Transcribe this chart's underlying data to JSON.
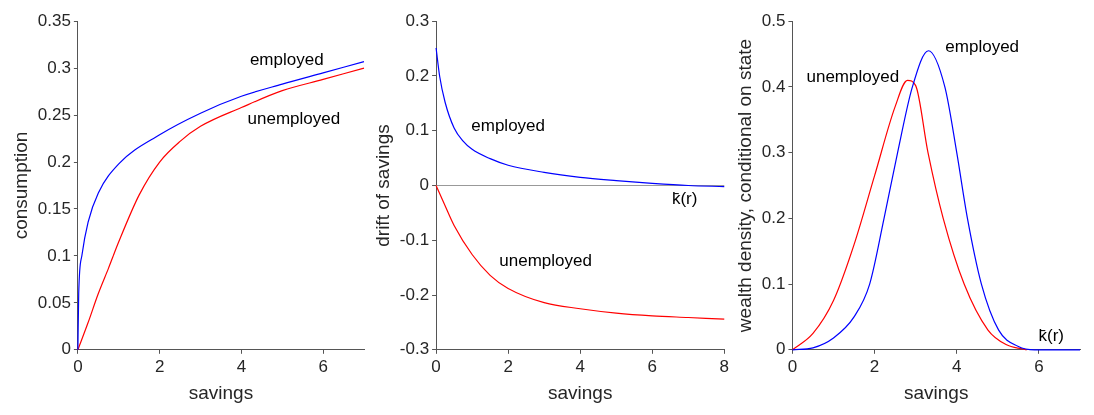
{
  "chart_data": [
    {
      "type": "line",
      "xlabel": "savings",
      "ylabel": "consumption",
      "xlim": [
        0,
        7
      ],
      "xticks": [
        0,
        2,
        4,
        6
      ],
      "ylim": [
        0,
        0.35
      ],
      "yticks": [
        0,
        0.05,
        0.1,
        0.15,
        0.2,
        0.25,
        0.3,
        0.35
      ],
      "grid": false,
      "legend": false,
      "series": [
        {
          "name": "employed",
          "color": "#0000ff",
          "x": [
            0,
            0.02,
            0.1,
            0.25,
            0.5,
            1,
            2,
            3,
            4,
            5,
            6,
            7
          ],
          "values": [
            0,
            0.06,
            0.101,
            0.136,
            0.167,
            0.198,
            0.229,
            0.252,
            0.27,
            0.283,
            0.295,
            0.307
          ]
        },
        {
          "name": "unemployed",
          "color": "#ff0000",
          "x": [
            0,
            0.25,
            0.5,
            0.75,
            1,
            1.5,
            2,
            2.5,
            3,
            4,
            5,
            6,
            7
          ],
          "values": [
            0,
            0.029,
            0.06,
            0.087,
            0.115,
            0.165,
            0.2,
            0.222,
            0.238,
            0.258,
            0.276,
            0.288,
            0.3
          ]
        }
      ]
    },
    {
      "type": "line",
      "xlabel": "savings",
      "ylabel": "drift of savings",
      "xlim": [
        0,
        8
      ],
      "xticks": [
        0,
        2,
        4,
        6,
        8
      ],
      "ylim": [
        -0.3,
        0.3
      ],
      "yticks": [
        -0.3,
        -0.2,
        -0.1,
        0,
        0.1,
        0.2,
        0.3
      ],
      "grid": false,
      "legend": false,
      "ref_lines": [
        {
          "axis": "y",
          "value": 0,
          "color": "#999999"
        }
      ],
      "annotations": [
        {
          "text": "k̄(r)",
          "x": 6.9,
          "y": 0
        }
      ],
      "series": [
        {
          "name": "employed",
          "color": "#0000ff",
          "x": [
            0,
            0.1,
            0.25,
            0.5,
            0.75,
            1,
            1.5,
            2,
            3,
            4,
            5,
            6,
            7,
            8
          ],
          "values": [
            0.251,
            0.199,
            0.152,
            0.105,
            0.081,
            0.066,
            0.049,
            0.037,
            0.024,
            0.015,
            0.009,
            0.004,
            0,
            -0.002
          ]
        },
        {
          "name": "unemployed",
          "color": "#ff0000",
          "x": [
            0,
            0.25,
            0.5,
            1,
            1.5,
            2,
            3,
            4,
            5,
            6,
            7,
            8
          ],
          "values": [
            0,
            -0.037,
            -0.073,
            -0.126,
            -0.164,
            -0.188,
            -0.214,
            -0.225,
            -0.233,
            -0.238,
            -0.241,
            -0.244
          ]
        }
      ]
    },
    {
      "type": "line",
      "xlabel": "savings",
      "ylabel": "wealth density, conditional on state",
      "xlim": [
        0,
        7
      ],
      "xticks": [
        0,
        2,
        4,
        6
      ],
      "ylim": [
        0,
        0.5
      ],
      "yticks": [
        0,
        0.1,
        0.2,
        0.3,
        0.4,
        0.5
      ],
      "grid": false,
      "legend": false,
      "annotations": [
        {
          "text": "k̄(r)",
          "x": 6.3,
          "y": 0
        }
      ],
      "series": [
        {
          "name": "employed",
          "color": "#0000ff",
          "x": [
            0,
            0.5,
            1,
            1.5,
            1.88,
            2.23,
            2.56,
            2.92,
            3.31,
            3.71,
            4.0,
            4.26,
            4.6,
            5.02,
            5.5,
            5.9,
            7
          ],
          "values": [
            0,
            0.003,
            0.018,
            0.05,
            0.1,
            0.2,
            0.3,
            0.4,
            0.455,
            0.4,
            0.3,
            0.2,
            0.1,
            0.03,
            0.005,
            0,
            0
          ]
        },
        {
          "name": "unemployed",
          "color": "#ff0000",
          "x": [
            0,
            0.5,
            1,
            1.5,
            2,
            2.5,
            2.8,
            3,
            3.3,
            3.67,
            4.18,
            4.76,
            5.2,
            5.7
          ],
          "values": [
            0,
            0.025,
            0.075,
            0.16,
            0.265,
            0.37,
            0.41,
            0.402,
            0.3,
            0.2,
            0.1,
            0.03,
            0.008,
            0
          ]
        }
      ]
    }
  ]
}
